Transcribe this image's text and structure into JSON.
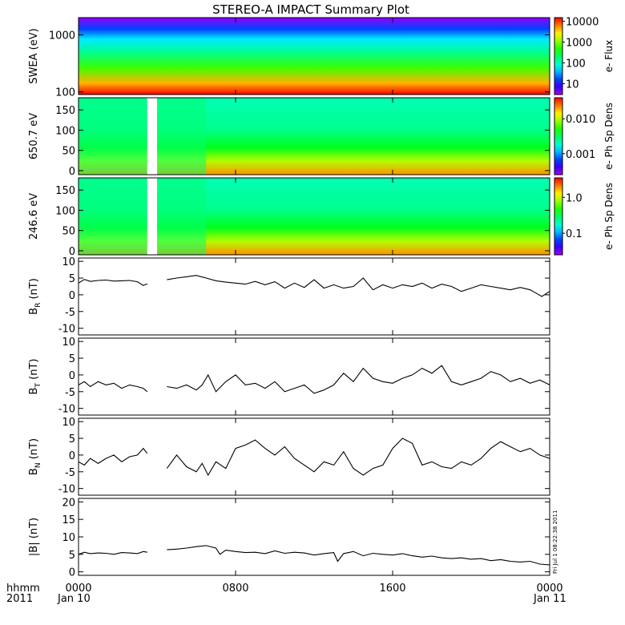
{
  "title": "STEREO-A IMPACT Summary Plot",
  "footer": {
    "time_label": "hhmm",
    "year_label": "2011",
    "date_start": "Jan 10",
    "date_end": "Jan 11",
    "timestamp": "Fri Jul 1 08:22:38 2011"
  },
  "chart_data": [
    {
      "type": "heatmap",
      "ylabel": "SWEA (eV)",
      "yscale": "log",
      "ylim": [
        90,
        2000
      ],
      "yticks": [
        {
          "v": 100,
          "label": "100"
        },
        {
          "v": 1000,
          "label": "1000"
        }
      ],
      "colorbar": {
        "label": "e- Flux",
        "scale": "log",
        "range": [
          3,
          15000
        ],
        "ticks": [
          {
            "v": 10,
            "label": "10"
          },
          {
            "v": 100,
            "label": "100"
          },
          {
            "v": 1000,
            "label": "1000"
          },
          {
            "v": 10000,
            "label": "10000"
          }
        ]
      }
    },
    {
      "type": "heatmap",
      "ylabel": "650.7 eV",
      "ylim": [
        -10,
        180
      ],
      "yticks": [
        {
          "v": 0,
          "label": "0"
        },
        {
          "v": 50,
          "label": "50"
        },
        {
          "v": 100,
          "label": "100"
        },
        {
          "v": 150,
          "label": "150"
        }
      ],
      "data_gap_hours": [
        3.5,
        4.0
      ],
      "colorbar": {
        "label": "e- Ph Sp Dens",
        "scale": "log",
        "range": [
          0.00025,
          0.04
        ],
        "ticks": [
          {
            "v": 0.001,
            "label": "0.001"
          },
          {
            "v": 0.01,
            "label": "0.010"
          }
        ]
      }
    },
    {
      "type": "heatmap",
      "ylabel": "246.6 eV",
      "ylim": [
        -10,
        180
      ],
      "yticks": [
        {
          "v": 0,
          "label": "0"
        },
        {
          "v": 50,
          "label": "50"
        },
        {
          "v": 100,
          "label": "100"
        },
        {
          "v": 150,
          "label": "150"
        }
      ],
      "data_gap_hours": [
        3.5,
        4.0
      ],
      "colorbar": {
        "label": "e- Ph Sp Dens",
        "scale": "log",
        "range": [
          0.025,
          3.5
        ],
        "ticks": [
          {
            "v": 0.1,
            "label": "0.1"
          },
          {
            "v": 1.0,
            "label": "1.0"
          }
        ]
      }
    },
    {
      "type": "line",
      "ylabel": "B_R (nT)",
      "ylabel_main": "B",
      "ylabel_sub": "R",
      "ylabel_unit": "(nT)",
      "ylim": [
        -12,
        11
      ],
      "yticks": [
        {
          "v": -10,
          "label": "-10"
        },
        {
          "v": -5,
          "label": "-5"
        },
        {
          "v": 0,
          "label": "0"
        },
        {
          "v": 5,
          "label": "5"
        },
        {
          "v": 10,
          "label": "10"
        }
      ],
      "x": [
        0,
        0.3,
        0.6,
        1,
        1.4,
        1.8,
        2.2,
        2.6,
        3,
        3.3,
        3.5,
        4,
        4.5,
        5,
        5.5,
        6,
        6.5,
        7,
        7.5,
        8,
        8.5,
        9,
        9.5,
        10,
        10.5,
        11,
        11.5,
        12,
        12.5,
        13,
        13.5,
        14,
        14.5,
        15,
        15.5,
        16,
        16.5,
        17,
        17.5,
        18,
        18.5,
        19,
        19.5,
        20,
        20.5,
        21,
        21.5,
        22,
        22.5,
        23,
        23.3,
        23.6,
        24
      ],
      "values": [
        3.5,
        4.6,
        4.0,
        4.3,
        4.4,
        4.1,
        4.2,
        4.3,
        3.9,
        2.8,
        3.3,
        null,
        4.5,
        5.0,
        5.4,
        5.8,
        5.0,
        4.2,
        3.8,
        3.5,
        3.2,
        4.0,
        3.0,
        3.9,
        2.0,
        3.5,
        2.2,
        4.5,
        2.0,
        3.0,
        2.0,
        2.5,
        5.0,
        1.5,
        3.0,
        2.0,
        3.0,
        2.5,
        3.5,
        2.0,
        3.2,
        2.5,
        1.0,
        2.0,
        3.0,
        2.5,
        2.0,
        1.5,
        2.2,
        1.5,
        0.5,
        -0.5,
        1.0
      ]
    },
    {
      "type": "line",
      "ylabel": "B_T (nT)",
      "ylabel_main": "B",
      "ylabel_sub": "T",
      "ylabel_unit": "(nT)",
      "ylim": [
        -12,
        11
      ],
      "yticks": [
        {
          "v": -10,
          "label": "-10"
        },
        {
          "v": -5,
          "label": "-5"
        },
        {
          "v": 0,
          "label": "0"
        },
        {
          "v": 5,
          "label": "5"
        },
        {
          "v": 10,
          "label": "10"
        }
      ],
      "x": [
        0,
        0.3,
        0.6,
        1,
        1.4,
        1.8,
        2.2,
        2.6,
        3,
        3.3,
        3.5,
        4,
        4.5,
        5,
        5.5,
        6,
        6.3,
        6.6,
        7,
        7.5,
        8,
        8.5,
        9,
        9.5,
        10,
        10.5,
        11,
        11.5,
        12,
        12.5,
        13,
        13.5,
        14,
        14.5,
        15,
        15.5,
        16,
        16.5,
        17,
        17.5,
        18,
        18.5,
        19,
        19.5,
        20,
        20.5,
        21,
        21.5,
        22,
        22.5,
        23,
        23.5,
        24
      ],
      "values": [
        -3.0,
        -2.0,
        -3.5,
        -2.0,
        -3.0,
        -2.5,
        -4.0,
        -3.0,
        -3.5,
        -4.0,
        -5.0,
        null,
        -3.5,
        -4.0,
        -3.0,
        -4.5,
        -3.0,
        0.0,
        -5.0,
        -2.0,
        0.0,
        -3.0,
        -2.5,
        -4.0,
        -2.0,
        -5.0,
        -4.0,
        -3.0,
        -5.5,
        -4.5,
        -3.0,
        0.5,
        -2.0,
        2.0,
        -1.0,
        -2.0,
        -2.5,
        -1.0,
        0.0,
        2.0,
        0.5,
        2.8,
        -2.0,
        -3.0,
        -2.0,
        -1.0,
        1.0,
        0.0,
        -2.0,
        -1.0,
        -2.5,
        -1.5,
        -3.0
      ]
    },
    {
      "type": "line",
      "ylabel": "B_N (nT)",
      "ylabel_main": "B",
      "ylabel_sub": "N",
      "ylabel_unit": "(nT)",
      "ylim": [
        -12,
        11
      ],
      "yticks": [
        {
          "v": -10,
          "label": "-10"
        },
        {
          "v": -5,
          "label": "-5"
        },
        {
          "v": 0,
          "label": "0"
        },
        {
          "v": 5,
          "label": "5"
        },
        {
          "v": 10,
          "label": "10"
        }
      ],
      "x": [
        0,
        0.3,
        0.6,
        1,
        1.4,
        1.8,
        2.2,
        2.6,
        3,
        3.3,
        3.5,
        4,
        4.5,
        5,
        5.5,
        6,
        6.3,
        6.6,
        7,
        7.5,
        8,
        8.5,
        9,
        9.5,
        10,
        10.5,
        11,
        11.5,
        12,
        12.5,
        13,
        13.5,
        14,
        14.5,
        15,
        15.5,
        16,
        16.5,
        17,
        17.5,
        18,
        18.5,
        19,
        19.5,
        20,
        20.5,
        21,
        21.5,
        22,
        22.5,
        23,
        23.5,
        24
      ],
      "values": [
        -2.0,
        -3.0,
        -1.0,
        -2.5,
        -1.0,
        0.0,
        -2.0,
        -0.5,
        0.0,
        2.0,
        0.5,
        null,
        -4.0,
        0.0,
        -3.5,
        -5.0,
        -2.5,
        -6.0,
        -2.0,
        -4.0,
        2.0,
        3.0,
        4.5,
        2.0,
        0.0,
        2.5,
        -1.0,
        -3.0,
        -5.0,
        -2.0,
        -3.0,
        1.0,
        -4.0,
        -6.0,
        -4.0,
        -3.0,
        2.0,
        5.0,
        3.5,
        -3.0,
        -2.0,
        -3.5,
        -4.0,
        -2.0,
        -3.0,
        -1.0,
        2.0,
        4.0,
        2.5,
        1.0,
        2.0,
        0.0,
        -1.0
      ]
    },
    {
      "type": "line",
      "ylabel": "|B| (nT)",
      "ylabel_main": "|B|",
      "ylabel_sub": "",
      "ylabel_unit": "(nT)",
      "ylim": [
        -1,
        21
      ],
      "yticks": [
        {
          "v": 0,
          "label": "0"
        },
        {
          "v": 5,
          "label": "5"
        },
        {
          "v": 10,
          "label": "10"
        },
        {
          "v": 15,
          "label": "15"
        },
        {
          "v": 20,
          "label": "20"
        }
      ],
      "x": [
        0,
        0.3,
        0.6,
        1,
        1.4,
        1.8,
        2.2,
        2.6,
        3,
        3.3,
        3.5,
        4,
        4.5,
        5,
        5.5,
        6,
        6.5,
        7,
        7.2,
        7.5,
        8,
        8.5,
        9,
        9.5,
        10,
        10.5,
        11,
        11.5,
        12,
        12.5,
        13,
        13.2,
        13.5,
        14,
        14.5,
        15,
        15.5,
        16,
        16.5,
        17,
        17.5,
        18,
        18.5,
        19,
        19.5,
        20,
        20.5,
        21,
        21.5,
        22,
        22.5,
        23,
        23.5,
        24
      ],
      "values": [
        5.0,
        5.6,
        5.2,
        5.4,
        5.3,
        5.0,
        5.5,
        5.4,
        5.2,
        5.8,
        5.6,
        null,
        6.3,
        6.5,
        6.8,
        7.2,
        7.5,
        6.8,
        5.0,
        6.2,
        5.8,
        5.5,
        5.6,
        5.2,
        6.0,
        5.3,
        5.6,
        5.4,
        4.8,
        5.2,
        5.5,
        3.0,
        5.2,
        5.8,
        4.6,
        5.3,
        5.0,
        4.8,
        5.2,
        4.6,
        4.2,
        4.5,
        4.0,
        3.8,
        4.0,
        3.6,
        3.8,
        3.2,
        3.5,
        3.0,
        2.8,
        3.0,
        2.2,
        2.0
      ]
    }
  ],
  "xaxis": {
    "range_hours": [
      0,
      24
    ],
    "ticks": [
      {
        "v": 0,
        "label": "0000"
      },
      {
        "v": 8,
        "label": "0800"
      },
      {
        "v": 16,
        "label": "1600"
      },
      {
        "v": 24,
        "label": "0000"
      }
    ]
  }
}
